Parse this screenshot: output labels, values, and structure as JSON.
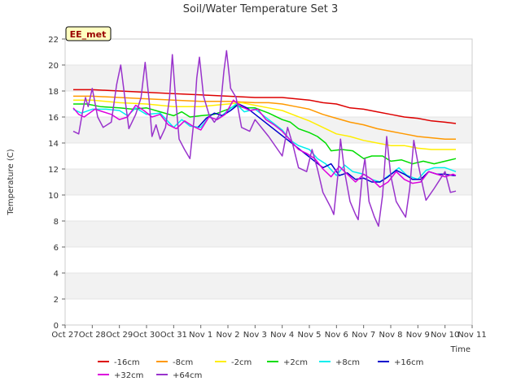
{
  "chart_data": {
    "type": "line",
    "title": "Soil/Water Temperature Set 3",
    "xlabel": "Time",
    "ylabel": "Temperature (C)",
    "ylim": [
      0,
      22
    ],
    "yticks": [
      0,
      2,
      4,
      6,
      8,
      10,
      12,
      14,
      16,
      18,
      20,
      22
    ],
    "xlim": [
      0,
      15
    ],
    "xticks": [
      {
        "v": 0,
        "label": "Oct 27"
      },
      {
        "v": 1,
        "label": "Oct 28"
      },
      {
        "v": 2,
        "label": "Oct 29"
      },
      {
        "v": 3,
        "label": "Oct 30"
      },
      {
        "v": 4,
        "label": "Oct 31"
      },
      {
        "v": 5,
        "label": "Nov 1"
      },
      {
        "v": 6,
        "label": "Nov 2"
      },
      {
        "v": 7,
        "label": "Nov 3"
      },
      {
        "v": 8,
        "label": "Nov 4"
      },
      {
        "v": 9,
        "label": "Nov 5"
      },
      {
        "v": 10,
        "label": "Nov 6"
      },
      {
        "v": 11,
        "label": "Nov 7"
      },
      {
        "v": 12,
        "label": "Nov 8"
      },
      {
        "v": 13,
        "label": "Nov 9"
      },
      {
        "v": 14,
        "label": "Nov 10"
      },
      {
        "v": 15,
        "label": "Nov 11"
      }
    ],
    "grid": "horizontal-bands",
    "station_label": "EE_met",
    "legend_position": "bottom",
    "series": [
      {
        "name": "-16cm",
        "color": "#dd0000",
        "points": [
          [
            0.3,
            18.1
          ],
          [
            1,
            18.1
          ],
          [
            2,
            18.0
          ],
          [
            3,
            17.9
          ],
          [
            4,
            17.8
          ],
          [
            5,
            17.7
          ],
          [
            6,
            17.6
          ],
          [
            7,
            17.5
          ],
          [
            8,
            17.5
          ],
          [
            8.5,
            17.4
          ],
          [
            9,
            17.3
          ],
          [
            9.5,
            17.1
          ],
          [
            10,
            17.0
          ],
          [
            10.5,
            16.7
          ],
          [
            11,
            16.6
          ],
          [
            11.5,
            16.4
          ],
          [
            12,
            16.2
          ],
          [
            12.5,
            16.0
          ],
          [
            13,
            15.9
          ],
          [
            13.5,
            15.7
          ],
          [
            14,
            15.6
          ],
          [
            14.4,
            15.5
          ]
        ]
      },
      {
        "name": "-8cm",
        "color": "#ff9900",
        "points": [
          [
            0.3,
            17.6
          ],
          [
            1,
            17.6
          ],
          [
            2,
            17.5
          ],
          [
            3,
            17.4
          ],
          [
            4,
            17.3
          ],
          [
            5,
            17.2
          ],
          [
            6,
            17.2
          ],
          [
            7,
            17.1
          ],
          [
            7.5,
            17.1
          ],
          [
            8,
            17.0
          ],
          [
            8.5,
            16.8
          ],
          [
            9,
            16.6
          ],
          [
            9.5,
            16.2
          ],
          [
            10,
            15.9
          ],
          [
            10.5,
            15.6
          ],
          [
            11,
            15.4
          ],
          [
            11.5,
            15.1
          ],
          [
            12,
            14.9
          ],
          [
            12.5,
            14.7
          ],
          [
            13,
            14.5
          ],
          [
            13.5,
            14.4
          ],
          [
            14,
            14.3
          ],
          [
            14.4,
            14.3
          ]
        ]
      },
      {
        "name": "-2cm",
        "color": "#ffee00",
        "points": [
          [
            0.3,
            17.3
          ],
          [
            1,
            17.3
          ],
          [
            2,
            17.1
          ],
          [
            3,
            17.0
          ],
          [
            4,
            16.8
          ],
          [
            5,
            16.8
          ],
          [
            6,
            17.0
          ],
          [
            6.5,
            17.1
          ],
          [
            7,
            16.9
          ],
          [
            7.5,
            16.7
          ],
          [
            8,
            16.5
          ],
          [
            8.5,
            16.1
          ],
          [
            9,
            15.7
          ],
          [
            9.5,
            15.2
          ],
          [
            10,
            14.7
          ],
          [
            10.5,
            14.5
          ],
          [
            11,
            14.2
          ],
          [
            11.5,
            14.0
          ],
          [
            12,
            13.8
          ],
          [
            12.5,
            13.8
          ],
          [
            13,
            13.6
          ],
          [
            13.5,
            13.5
          ],
          [
            14,
            13.5
          ],
          [
            14.4,
            13.5
          ]
        ]
      },
      {
        "name": "+2cm",
        "color": "#00dd00",
        "points": [
          [
            0.3,
            17.0
          ],
          [
            0.8,
            17.0
          ],
          [
            1.3,
            16.8
          ],
          [
            2,
            16.7
          ],
          [
            2.5,
            16.6
          ],
          [
            3,
            16.7
          ],
          [
            3.5,
            16.4
          ],
          [
            4,
            16.1
          ],
          [
            4.3,
            16.4
          ],
          [
            4.6,
            16.0
          ],
          [
            5,
            16.1
          ],
          [
            5.5,
            16.2
          ],
          [
            6,
            16.6
          ],
          [
            6.3,
            16.9
          ],
          [
            6.6,
            16.7
          ],
          [
            7,
            16.7
          ],
          [
            7.5,
            16.3
          ],
          [
            8,
            15.8
          ],
          [
            8.3,
            15.6
          ],
          [
            8.6,
            15.1
          ],
          [
            9,
            14.8
          ],
          [
            9.3,
            14.5
          ],
          [
            9.6,
            14.0
          ],
          [
            9.8,
            13.4
          ],
          [
            10.2,
            13.5
          ],
          [
            10.6,
            13.4
          ],
          [
            11,
            12.8
          ],
          [
            11.3,
            13.0
          ],
          [
            11.7,
            13.0
          ],
          [
            12,
            12.6
          ],
          [
            12.4,
            12.7
          ],
          [
            12.8,
            12.4
          ],
          [
            13.2,
            12.6
          ],
          [
            13.6,
            12.4
          ],
          [
            14,
            12.6
          ],
          [
            14.4,
            12.8
          ]
        ]
      },
      {
        "name": "+8cm",
        "color": "#00eeee",
        "points": [
          [
            0.3,
            16.6
          ],
          [
            0.6,
            16.3
          ],
          [
            1,
            16.6
          ],
          [
            1.5,
            16.6
          ],
          [
            2,
            16.5
          ],
          [
            2.3,
            16.1
          ],
          [
            2.6,
            16.7
          ],
          [
            3,
            16.2
          ],
          [
            3.5,
            16.3
          ],
          [
            4,
            15.2
          ],
          [
            4.3,
            15.8
          ],
          [
            4.6,
            15.3
          ],
          [
            5,
            15.2
          ],
          [
            5.3,
            16.0
          ],
          [
            5.6,
            15.8
          ],
          [
            6,
            16.5
          ],
          [
            6.3,
            17.0
          ],
          [
            6.6,
            16.4
          ],
          [
            7,
            16.6
          ],
          [
            7.5,
            15.8
          ],
          [
            8,
            15.0
          ],
          [
            8.3,
            14.2
          ],
          [
            8.6,
            13.8
          ],
          [
            9,
            13.5
          ],
          [
            9.3,
            12.8
          ],
          [
            9.6,
            12.4
          ],
          [
            10,
            11.5
          ],
          [
            10.3,
            12.3
          ],
          [
            10.6,
            11.8
          ],
          [
            11,
            11.6
          ],
          [
            11.3,
            11.2
          ],
          [
            11.6,
            11.0
          ],
          [
            12,
            11.6
          ],
          [
            12.3,
            12.1
          ],
          [
            12.6,
            11.5
          ],
          [
            13,
            11.2
          ],
          [
            13.3,
            11.9
          ],
          [
            13.6,
            12.1
          ],
          [
            14,
            12.1
          ],
          [
            14.4,
            11.8
          ]
        ]
      },
      {
        "name": "+16cm",
        "color": "#0000cc",
        "points": [
          [
            4.9,
            15.2
          ],
          [
            5.2,
            15.9
          ],
          [
            5.5,
            16.3
          ],
          [
            5.8,
            16.1
          ],
          [
            6.1,
            16.5
          ],
          [
            6.4,
            17.0
          ],
          [
            6.7,
            16.7
          ],
          [
            9.5,
            12.1
          ],
          [
            9.8,
            12.4
          ],
          [
            10.1,
            11.5
          ],
          [
            10.4,
            11.7
          ],
          [
            10.7,
            11.2
          ],
          [
            11,
            11.3
          ],
          [
            11.3,
            11.0
          ],
          [
            11.6,
            11.0
          ],
          [
            11.9,
            11.4
          ],
          [
            12.2,
            11.9
          ],
          [
            12.5,
            11.6
          ],
          [
            12.8,
            11.2
          ],
          [
            13.1,
            11.2
          ],
          [
            13.4,
            11.8
          ],
          [
            13.7,
            11.6
          ],
          [
            14,
            11.6
          ],
          [
            14.3,
            11.5
          ],
          [
            14.4,
            11.5
          ]
        ]
      },
      {
        "name": "+32cm",
        "color": "#dd00dd",
        "points": [
          [
            0.3,
            16.7
          ],
          [
            0.5,
            16.2
          ],
          [
            0.7,
            16.0
          ],
          [
            0.9,
            16.3
          ],
          [
            1.1,
            16.6
          ],
          [
            1.4,
            16.4
          ],
          [
            1.7,
            16.2
          ],
          [
            2,
            15.8
          ],
          [
            2.3,
            16.0
          ],
          [
            2.6,
            16.9
          ],
          [
            2.9,
            16.5
          ],
          [
            3.2,
            16.0
          ],
          [
            3.5,
            16.2
          ],
          [
            3.8,
            15.4
          ],
          [
            4.1,
            15.1
          ],
          [
            4.4,
            15.7
          ],
          [
            4.7,
            15.3
          ],
          [
            5,
            15.0
          ],
          [
            5.3,
            16.0
          ],
          [
            5.6,
            15.8
          ],
          [
            5.9,
            16.2
          ],
          [
            6.2,
            17.3
          ],
          [
            6.5,
            16.8
          ],
          [
            6.8,
            16.5
          ],
          [
            7.1,
            16.6
          ],
          [
            7.4,
            15.8
          ],
          [
            7.7,
            15.4
          ],
          [
            8,
            14.9
          ],
          [
            8.3,
            14.2
          ],
          [
            8.6,
            13.5
          ],
          [
            8.9,
            13.2
          ],
          [
            9.2,
            12.8
          ],
          [
            9.5,
            12.0
          ],
          [
            9.8,
            11.4
          ],
          [
            10.1,
            12.2
          ],
          [
            10.4,
            11.6
          ],
          [
            10.7,
            11.0
          ],
          [
            11,
            11.6
          ],
          [
            11.3,
            11.2
          ],
          [
            11.6,
            10.6
          ],
          [
            11.9,
            11.0
          ],
          [
            12.2,
            11.8
          ],
          [
            12.5,
            11.2
          ],
          [
            12.8,
            10.9
          ],
          [
            13.1,
            11.0
          ],
          [
            13.4,
            11.8
          ],
          [
            13.7,
            11.6
          ],
          [
            14,
            11.4
          ],
          [
            14.3,
            11.6
          ],
          [
            14.4,
            11.5
          ]
        ]
      },
      {
        "name": "+64cm",
        "color": "#9933cc",
        "points": [
          [
            0.3,
            14.9
          ],
          [
            0.5,
            14.7
          ],
          [
            0.65,
            16.5
          ],
          [
            0.75,
            17.5
          ],
          [
            0.85,
            16.8
          ],
          [
            1,
            18.2
          ],
          [
            1.2,
            16.0
          ],
          [
            1.4,
            15.2
          ],
          [
            1.7,
            15.6
          ],
          [
            1.9,
            18.5
          ],
          [
            2.05,
            20.0
          ],
          [
            2.2,
            17.5
          ],
          [
            2.35,
            15.1
          ],
          [
            2.6,
            16.2
          ],
          [
            2.8,
            17.5
          ],
          [
            2.95,
            20.2
          ],
          [
            3.1,
            17.2
          ],
          [
            3.2,
            14.5
          ],
          [
            3.35,
            15.4
          ],
          [
            3.5,
            14.3
          ],
          [
            3.7,
            15.2
          ],
          [
            3.85,
            17.5
          ],
          [
            3.95,
            20.8
          ],
          [
            4.05,
            18.0
          ],
          [
            4.2,
            14.3
          ],
          [
            4.4,
            13.5
          ],
          [
            4.6,
            12.8
          ],
          [
            4.75,
            15.8
          ],
          [
            4.85,
            19.0
          ],
          [
            4.95,
            20.6
          ],
          [
            5.1,
            17.6
          ],
          [
            5.3,
            16.2
          ],
          [
            5.5,
            15.6
          ],
          [
            5.7,
            16.2
          ],
          [
            5.85,
            19.5
          ],
          [
            5.95,
            21.1
          ],
          [
            6.1,
            18.2
          ],
          [
            6.3,
            17.5
          ],
          [
            6.5,
            15.2
          ],
          [
            6.8,
            14.9
          ],
          [
            7,
            15.8
          ],
          [
            7.5,
            14.5
          ],
          [
            8,
            13.0
          ],
          [
            8.2,
            15.2
          ],
          [
            8.4,
            13.8
          ],
          [
            8.6,
            12.1
          ],
          [
            8.9,
            11.8
          ],
          [
            9.1,
            13.5
          ],
          [
            9.3,
            12.0
          ],
          [
            9.5,
            10.2
          ],
          [
            9.8,
            9.0
          ],
          [
            9.9,
            8.5
          ],
          [
            10.05,
            11.5
          ],
          [
            10.15,
            14.3
          ],
          [
            10.3,
            11.8
          ],
          [
            10.5,
            9.5
          ],
          [
            10.7,
            8.5
          ],
          [
            10.8,
            8.1
          ],
          [
            10.95,
            11.5
          ],
          [
            11.05,
            12.8
          ],
          [
            11.2,
            9.5
          ],
          [
            11.4,
            8.3
          ],
          [
            11.55,
            7.6
          ],
          [
            11.7,
            10.0
          ],
          [
            11.85,
            14.5
          ],
          [
            12.0,
            11.5
          ],
          [
            12.2,
            9.5
          ],
          [
            12.4,
            8.8
          ],
          [
            12.55,
            8.3
          ],
          [
            12.7,
            10.5
          ],
          [
            12.85,
            14.2
          ],
          [
            13.0,
            12.5
          ],
          [
            13.2,
            10.5
          ],
          [
            13.3,
            9.6
          ],
          [
            13.6,
            10.5
          ],
          [
            14.0,
            11.8
          ],
          [
            14.2,
            10.2
          ],
          [
            14.4,
            10.3
          ]
        ]
      }
    ]
  }
}
